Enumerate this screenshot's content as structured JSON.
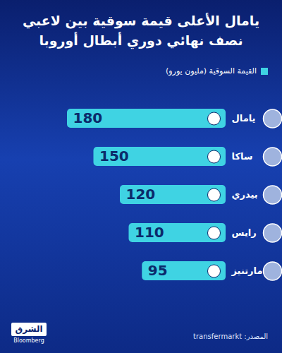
{
  "chart_data": {
    "type": "bar",
    "orientation": "horizontal",
    "title": "يامال الأعلى قيمة سوقية بين لاعبي نصف نهائي دوري أبطال أوروبا",
    "categories": [
      "يامال",
      "ساكا",
      "بيدري",
      "رايس",
      "مارتنيز"
    ],
    "series": [
      {
        "name": "القيمة السوقية (مليون يورو)",
        "color": "#3fd3e3",
        "values": [
          180,
          150,
          120,
          110,
          95
        ]
      }
    ],
    "xlim": [
      0,
      180
    ],
    "data_labels": true,
    "tick_labels": "y",
    "legend": "top-right",
    "source": "المصدر: transfermarkt",
    "brand": [
      "الشرق",
      "Bloomberg"
    ]
  }
}
